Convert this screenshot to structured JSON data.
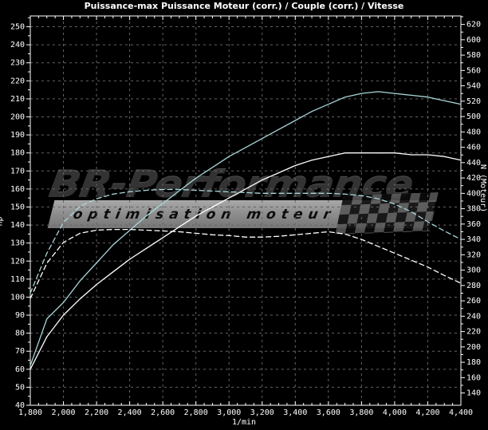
{
  "title": "Puissance-max Puissance Moteur (corr.) / Couple (corr.) / Vitesse",
  "watermark": {
    "brand": "BR-Performance",
    "tagline": "optimisation moteur"
  },
  "colors": {
    "background": "#000000",
    "frame": "#ffffff",
    "grid": "#646464",
    "curve_cyan": "#a9d6d9",
    "curve_white": "#ffffff",
    "watermark_bar": "#8f8f8f"
  },
  "chart_data": {
    "type": "line",
    "title": "Puissance-max Puissance Moteur (corr.) / Couple (corr.) / Vitesse",
    "xlabel": "1/min",
    "grid": "dashed both axes",
    "legend": "none",
    "x_axis": {
      "min": 1800,
      "max": 4400,
      "minor_tick_step": 50,
      "tick_values": [
        1800,
        2000,
        2200,
        2400,
        2600,
        2800,
        3000,
        3200,
        3400,
        3600,
        3800,
        4000,
        4200,
        4400
      ],
      "tick_labels": [
        "1,800",
        "2,000",
        "2,200",
        "2,400",
        "2,600",
        "2,800",
        "3,000",
        "3,200",
        "3,400",
        "3,600",
        "3,800",
        "4,000",
        "4,200",
        "4,400"
      ]
    },
    "y_left": {
      "label": "hp",
      "min": 40,
      "max": 256,
      "minor_tick_step": 5,
      "tick_values": [
        250,
        240,
        230,
        220,
        210,
        200,
        190,
        180,
        170,
        160,
        150,
        140,
        130,
        120,
        110,
        100,
        90,
        80,
        70,
        60,
        50,
        40
      ]
    },
    "y_right": {
      "label": "N (Moteur)",
      "min": 124,
      "max": 631,
      "minor_tick_step": 10,
      "tick_values": [
        620,
        600,
        580,
        560,
        540,
        520,
        500,
        480,
        460,
        440,
        420,
        400,
        380,
        360,
        340,
        320,
        300,
        280,
        260,
        240,
        220,
        200,
        180,
        160,
        140
      ]
    },
    "rpm": [
      1800,
      1900,
      2000,
      2100,
      2200,
      2300,
      2400,
      2500,
      2600,
      2700,
      2800,
      2900,
      3000,
      3100,
      3200,
      3300,
      3400,
      3500,
      3600,
      3700,
      3800,
      3900,
      4000,
      4100,
      4200,
      4300,
      4400
    ],
    "series": [
      {
        "name": "puissance-corrigee-hp",
        "axis": "left",
        "style": "solid",
        "color": "#a9d6d9",
        "values": [
          62,
          88,
          97,
          109,
          119,
          129,
          137,
          145,
          152,
          159,
          166,
          172,
          178,
          183,
          188,
          193,
          198,
          203,
          207,
          211,
          213,
          214,
          213,
          212,
          211,
          209,
          207
        ]
      },
      {
        "name": "puissance-origine-hp",
        "axis": "left",
        "style": "solid",
        "color": "#ffffff",
        "values": [
          60,
          78,
          90,
          99,
          107,
          114,
          121,
          127,
          133,
          139,
          145,
          150,
          155,
          160,
          165,
          169,
          173,
          176,
          178,
          180,
          180,
          180,
          180,
          179,
          179,
          178,
          176
        ]
      },
      {
        "name": "couple-corrige-nm",
        "axis": "right",
        "style": "dashed",
        "color": "#a9d6d9",
        "values": [
          270,
          322,
          362,
          383,
          393,
          399,
          402,
          404,
          405,
          405,
          404,
          403,
          402,
          401,
          400,
          400,
          400,
          400,
          400,
          399,
          397,
          393,
          386,
          376,
          363,
          351,
          340
        ]
      },
      {
        "name": "couple-origine-nm",
        "axis": "right",
        "style": "dashed",
        "color": "#ffffff",
        "values": [
          263,
          309,
          336,
          348,
          352,
          353,
          353,
          352,
          351,
          350,
          348,
          346,
          345,
          343,
          343,
          344,
          346,
          348,
          350,
          347,
          340,
          331,
          322,
          313,
          304,
          293,
          283
        ]
      }
    ],
    "peaks": {
      "puissance_corrigee_hp": 214,
      "puissance_origine_hp": 180,
      "couple_corrige_nm": 405,
      "couple_origine_nm": 353
    }
  }
}
